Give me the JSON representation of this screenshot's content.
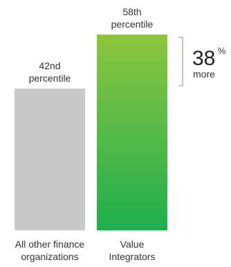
{
  "chart_data": {
    "type": "bar",
    "categories": [
      "All other finance organizations",
      "Value Integrators"
    ],
    "category_lines": [
      [
        "All other finance",
        "organizations"
      ],
      [
        "Value",
        "Integrators"
      ]
    ],
    "values": [
      42,
      58
    ],
    "value_labels": [
      [
        "42nd",
        "percentile"
      ],
      [
        "58th",
        "percentile"
      ]
    ],
    "ylim": [
      0,
      58
    ],
    "colors": {
      "bar_gray": "#c8c9cb",
      "bar_green_top": "#8dc63f",
      "bar_green_bottom": "#1fae4f",
      "bracket": "#9a9a9a"
    },
    "annotation": {
      "number": "38",
      "unit": "%",
      "word": "more"
    }
  }
}
